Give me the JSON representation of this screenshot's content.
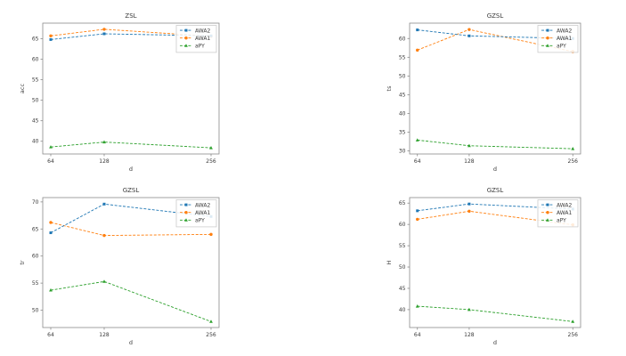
{
  "figure": {
    "background": "#ffffff",
    "spine_color": "#8a8a8a",
    "text_color": "#3a3a3a",
    "legend_border_color": "#cccccc"
  },
  "chart_data": [
    {
      "type": "line",
      "title": "ZSL",
      "xlabel": "d",
      "ylabel": "acc",
      "x": [
        64,
        128,
        256
      ],
      "xticks": [
        64,
        128,
        256
      ],
      "xlim": [
        54.4,
        265.6
      ],
      "yticks": [
        40,
        45,
        50,
        55,
        60,
        65
      ],
      "ylim": [
        36.9,
        68.8
      ],
      "grid": false,
      "legend_position": "upper right",
      "legend_entries": [
        "AWA2",
        "AWA1",
        "aPY"
      ],
      "series": [
        {
          "name": "AWA2",
          "color": "#1f77b4",
          "marker": "square",
          "linestyle": "dashed",
          "values": [
            64.8,
            66.2,
            65.7
          ]
        },
        {
          "name": "AWA1",
          "color": "#ff7f0e",
          "marker": "circle",
          "linestyle": "dashed",
          "values": [
            65.7,
            67.3,
            65.6
          ]
        },
        {
          "name": "aPY",
          "color": "#2ca02c",
          "marker": "triangle",
          "linestyle": "dashed",
          "values": [
            38.6,
            39.8,
            38.4
          ]
        }
      ]
    },
    {
      "type": "line",
      "title": "GZSL",
      "xlabel": "d",
      "ylabel": "ts",
      "x": [
        64,
        128,
        256
      ],
      "xticks": [
        64,
        128,
        256
      ],
      "xlim": [
        54.4,
        265.6
      ],
      "yticks": [
        30,
        35,
        40,
        45,
        50,
        55,
        60
      ],
      "ylim": [
        29.2,
        64.1
      ],
      "grid": false,
      "legend_position": "upper right",
      "legend_entries": [
        "AWA2",
        "AWA1",
        "aPY"
      ],
      "series": [
        {
          "name": "AWA2",
          "color": "#1f77b4",
          "marker": "square",
          "linestyle": "dashed",
          "values": [
            62.3,
            60.7,
            60.0
          ]
        },
        {
          "name": "AWA1",
          "color": "#ff7f0e",
          "marker": "circle",
          "linestyle": "dashed",
          "values": [
            56.9,
            62.4,
            56.5
          ]
        },
        {
          "name": "aPY",
          "color": "#2ca02c",
          "marker": "triangle",
          "linestyle": "dashed",
          "values": [
            32.9,
            31.4,
            30.6
          ]
        }
      ]
    },
    {
      "type": "line",
      "title": "GZSL",
      "xlabel": "d",
      "ylabel": "tr",
      "x": [
        64,
        128,
        256
      ],
      "xticks": [
        64,
        128,
        256
      ],
      "xlim": [
        54.4,
        265.6
      ],
      "yticks": [
        50,
        55,
        60,
        65,
        70
      ],
      "ylim": [
        46.8,
        70.8
      ],
      "grid": false,
      "legend_position": "upper right",
      "legend_entries": [
        "AWA2",
        "AWA1",
        "aPY"
      ],
      "series": [
        {
          "name": "AWA2",
          "color": "#1f77b4",
          "marker": "square",
          "linestyle": "dashed",
          "values": [
            64.3,
            69.6,
            67.3
          ]
        },
        {
          "name": "AWA1",
          "color": "#ff7f0e",
          "marker": "circle",
          "linestyle": "dashed",
          "values": [
            66.2,
            63.8,
            64.0
          ]
        },
        {
          "name": "aPY",
          "color": "#2ca02c",
          "marker": "triangle",
          "linestyle": "dashed",
          "values": [
            53.7,
            55.3,
            47.9
          ]
        }
      ]
    },
    {
      "type": "line",
      "title": "GZSL",
      "xlabel": "d",
      "ylabel": "H",
      "x": [
        64,
        128,
        256
      ],
      "xticks": [
        64,
        128,
        256
      ],
      "xlim": [
        54.4,
        265.6
      ],
      "yticks": [
        40,
        45,
        50,
        55,
        60,
        65
      ],
      "ylim": [
        35.8,
        66.3
      ],
      "grid": false,
      "legend_position": "upper right",
      "legend_entries": [
        "AWA2",
        "AWA1",
        "aPY"
      ],
      "series": [
        {
          "name": "AWA2",
          "color": "#1f77b4",
          "marker": "square",
          "linestyle": "dashed",
          "values": [
            63.2,
            64.8,
            63.6
          ]
        },
        {
          "name": "AWA1",
          "color": "#ff7f0e",
          "marker": "circle",
          "linestyle": "dashed",
          "values": [
            61.2,
            63.1,
            59.9
          ]
        },
        {
          "name": "aPY",
          "color": "#2ca02c",
          "marker": "triangle",
          "linestyle": "dashed",
          "values": [
            40.8,
            40.0,
            37.2
          ]
        }
      ]
    }
  ]
}
